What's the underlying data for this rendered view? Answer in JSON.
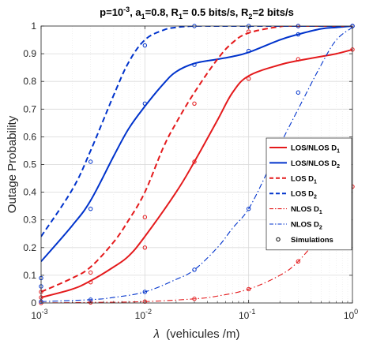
{
  "chart_data": {
    "type": "line",
    "title": {
      "parts": [
        {
          "t": "p=10"
        },
        {
          "t": "-3",
          "sup": true
        },
        {
          "t": ", a"
        },
        {
          "t": "1",
          "sub": true
        },
        {
          "t": "=0.8, R"
        },
        {
          "t": "1",
          "sub": true
        },
        {
          "t": "= 0.5 bits/s, R"
        },
        {
          "t": "2",
          "sub": true
        },
        {
          "t": "=2 bits/s"
        }
      ]
    },
    "xlabel": "(vehicules /m)",
    "xlabel_symbol": "λ",
    "ylabel": "Outage Probability",
    "xscale": "log",
    "xlim": [
      0.001,
      1
    ],
    "ylim": [
      0,
      1
    ],
    "grid": true,
    "legend_placement": "center-right",
    "x_ticks": [
      {
        "value": 0.001,
        "base": "10",
        "exp": "-3"
      },
      {
        "value": 0.01,
        "base": "10",
        "exp": "-2"
      },
      {
        "value": 0.1,
        "base": "10",
        "exp": "-1"
      },
      {
        "value": 1,
        "base": "10",
        "exp": "0"
      }
    ],
    "y_ticks": [
      {
        "value": 0,
        "label": "0"
      },
      {
        "value": 0.1,
        "label": "0.1"
      },
      {
        "value": 0.2,
        "label": "0.2"
      },
      {
        "value": 0.3,
        "label": "0.3"
      },
      {
        "value": 0.4,
        "label": "0.4"
      },
      {
        "value": 0.5,
        "label": "0.5"
      },
      {
        "value": 0.6,
        "label": "0.6"
      },
      {
        "value": 0.7,
        "label": "0.7"
      },
      {
        "value": 0.8,
        "label": "0.8"
      },
      {
        "value": 0.9,
        "label": "0.9"
      },
      {
        "value": 1,
        "label": "1"
      }
    ],
    "series": [
      {
        "name": "LOS/NLOS D",
        "sub": "1",
        "color": "#e41a1c",
        "style": "solid",
        "x": [
          0.001,
          0.002,
          0.003,
          0.005,
          0.007,
          0.01,
          0.02,
          0.03,
          0.05,
          0.07,
          0.1,
          0.2,
          0.3,
          0.5,
          0.7,
          1
        ],
        "y": [
          0.02,
          0.05,
          0.08,
          0.13,
          0.17,
          0.24,
          0.4,
          0.51,
          0.66,
          0.76,
          0.82,
          0.86,
          0.875,
          0.89,
          0.9,
          0.915
        ],
        "markers_x": [
          0.001,
          0.003,
          0.01,
          0.03,
          0.1,
          0.3,
          1
        ],
        "markers_y": [
          0.02,
          0.075,
          0.2,
          0.51,
          0.81,
          0.88,
          0.915
        ]
      },
      {
        "name": "LOS/NLOS D",
        "sub": "2",
        "color": "#0033cc",
        "style": "solid",
        "x": [
          0.001,
          0.002,
          0.003,
          0.005,
          0.007,
          0.01,
          0.015,
          0.02,
          0.03,
          0.05,
          0.07,
          0.1,
          0.2,
          0.3,
          0.5,
          0.7,
          1
        ],
        "y": [
          0.15,
          0.28,
          0.37,
          0.53,
          0.63,
          0.71,
          0.79,
          0.835,
          0.865,
          0.88,
          0.89,
          0.905,
          0.95,
          0.97,
          0.99,
          0.995,
          1.0
        ],
        "markers_x": [
          0.001,
          0.003,
          0.01,
          0.03,
          0.1,
          0.3,
          1
        ],
        "markers_y": [
          0.09,
          0.34,
          0.72,
          0.86,
          0.91,
          0.97,
          1.0
        ]
      },
      {
        "name": "LOS D",
        "sub": "1",
        "color": "#e41a1c",
        "style": "dashed",
        "x": [
          0.001,
          0.002,
          0.003,
          0.005,
          0.007,
          0.01,
          0.015,
          0.02,
          0.03,
          0.05,
          0.07,
          0.1,
          0.2,
          0.3,
          1
        ],
        "y": [
          0.04,
          0.09,
          0.13,
          0.22,
          0.3,
          0.4,
          0.56,
          0.65,
          0.76,
          0.88,
          0.94,
          0.975,
          0.998,
          1.0,
          1.0
        ],
        "markers_x": [
          0.001,
          0.003,
          0.01,
          0.03,
          0.1,
          0.3,
          1
        ],
        "markers_y": [
          0.04,
          0.11,
          0.31,
          0.72,
          0.98,
          1.0,
          1.0
        ]
      },
      {
        "name": "LOS D",
        "sub": "2",
        "color": "#0033cc",
        "style": "dashed",
        "x": [
          0.001,
          0.002,
          0.003,
          0.005,
          0.007,
          0.01,
          0.015,
          0.02,
          0.03,
          0.05,
          0.1,
          0.3,
          1
        ],
        "y": [
          0.24,
          0.41,
          0.55,
          0.75,
          0.87,
          0.95,
          0.985,
          0.995,
          1.0,
          1.0,
          1.0,
          1.0,
          1.0
        ],
        "markers_x": [
          0.001,
          0.003,
          0.01,
          0.03,
          0.1,
          0.3,
          1
        ],
        "markers_y": [
          0.06,
          0.51,
          0.93,
          1.0,
          1.0,
          1.0,
          1.0
        ]
      },
      {
        "name": "NLOS D",
        "sub": "1",
        "color": "#e41a1c",
        "style": "dashdot",
        "x": [
          0.001,
          0.003,
          0.01,
          0.03,
          0.05,
          0.1,
          0.2,
          0.3,
          0.5,
          0.7,
          1
        ],
        "y": [
          0.0,
          0.002,
          0.005,
          0.015,
          0.025,
          0.05,
          0.1,
          0.15,
          0.25,
          0.33,
          0.42
        ],
        "markers_x": [
          0.001,
          0.003,
          0.01,
          0.03,
          0.1,
          0.3,
          1
        ],
        "markers_y": [
          0.0,
          0.002,
          0.005,
          0.015,
          0.05,
          0.15,
          0.42
        ]
      },
      {
        "name": "NLOS D",
        "sub": "2",
        "color": "#0033cc",
        "style": "dashdot",
        "x": [
          0.001,
          0.003,
          0.005,
          0.01,
          0.02,
          0.03,
          0.05,
          0.07,
          0.1,
          0.15,
          0.2,
          0.3,
          0.5,
          0.7,
          1
        ],
        "y": [
          0.005,
          0.012,
          0.02,
          0.04,
          0.085,
          0.12,
          0.2,
          0.27,
          0.34,
          0.47,
          0.57,
          0.7,
          0.86,
          0.95,
          0.995
        ],
        "markers_x": [
          0.001,
          0.003,
          0.01,
          0.03,
          0.1,
          0.3,
          1
        ],
        "markers_y": [
          0.005,
          0.012,
          0.04,
          0.12,
          0.34,
          0.76,
          1.0
        ]
      }
    ],
    "legend_extra": {
      "name": "Simulations",
      "marker": "circle"
    }
  }
}
